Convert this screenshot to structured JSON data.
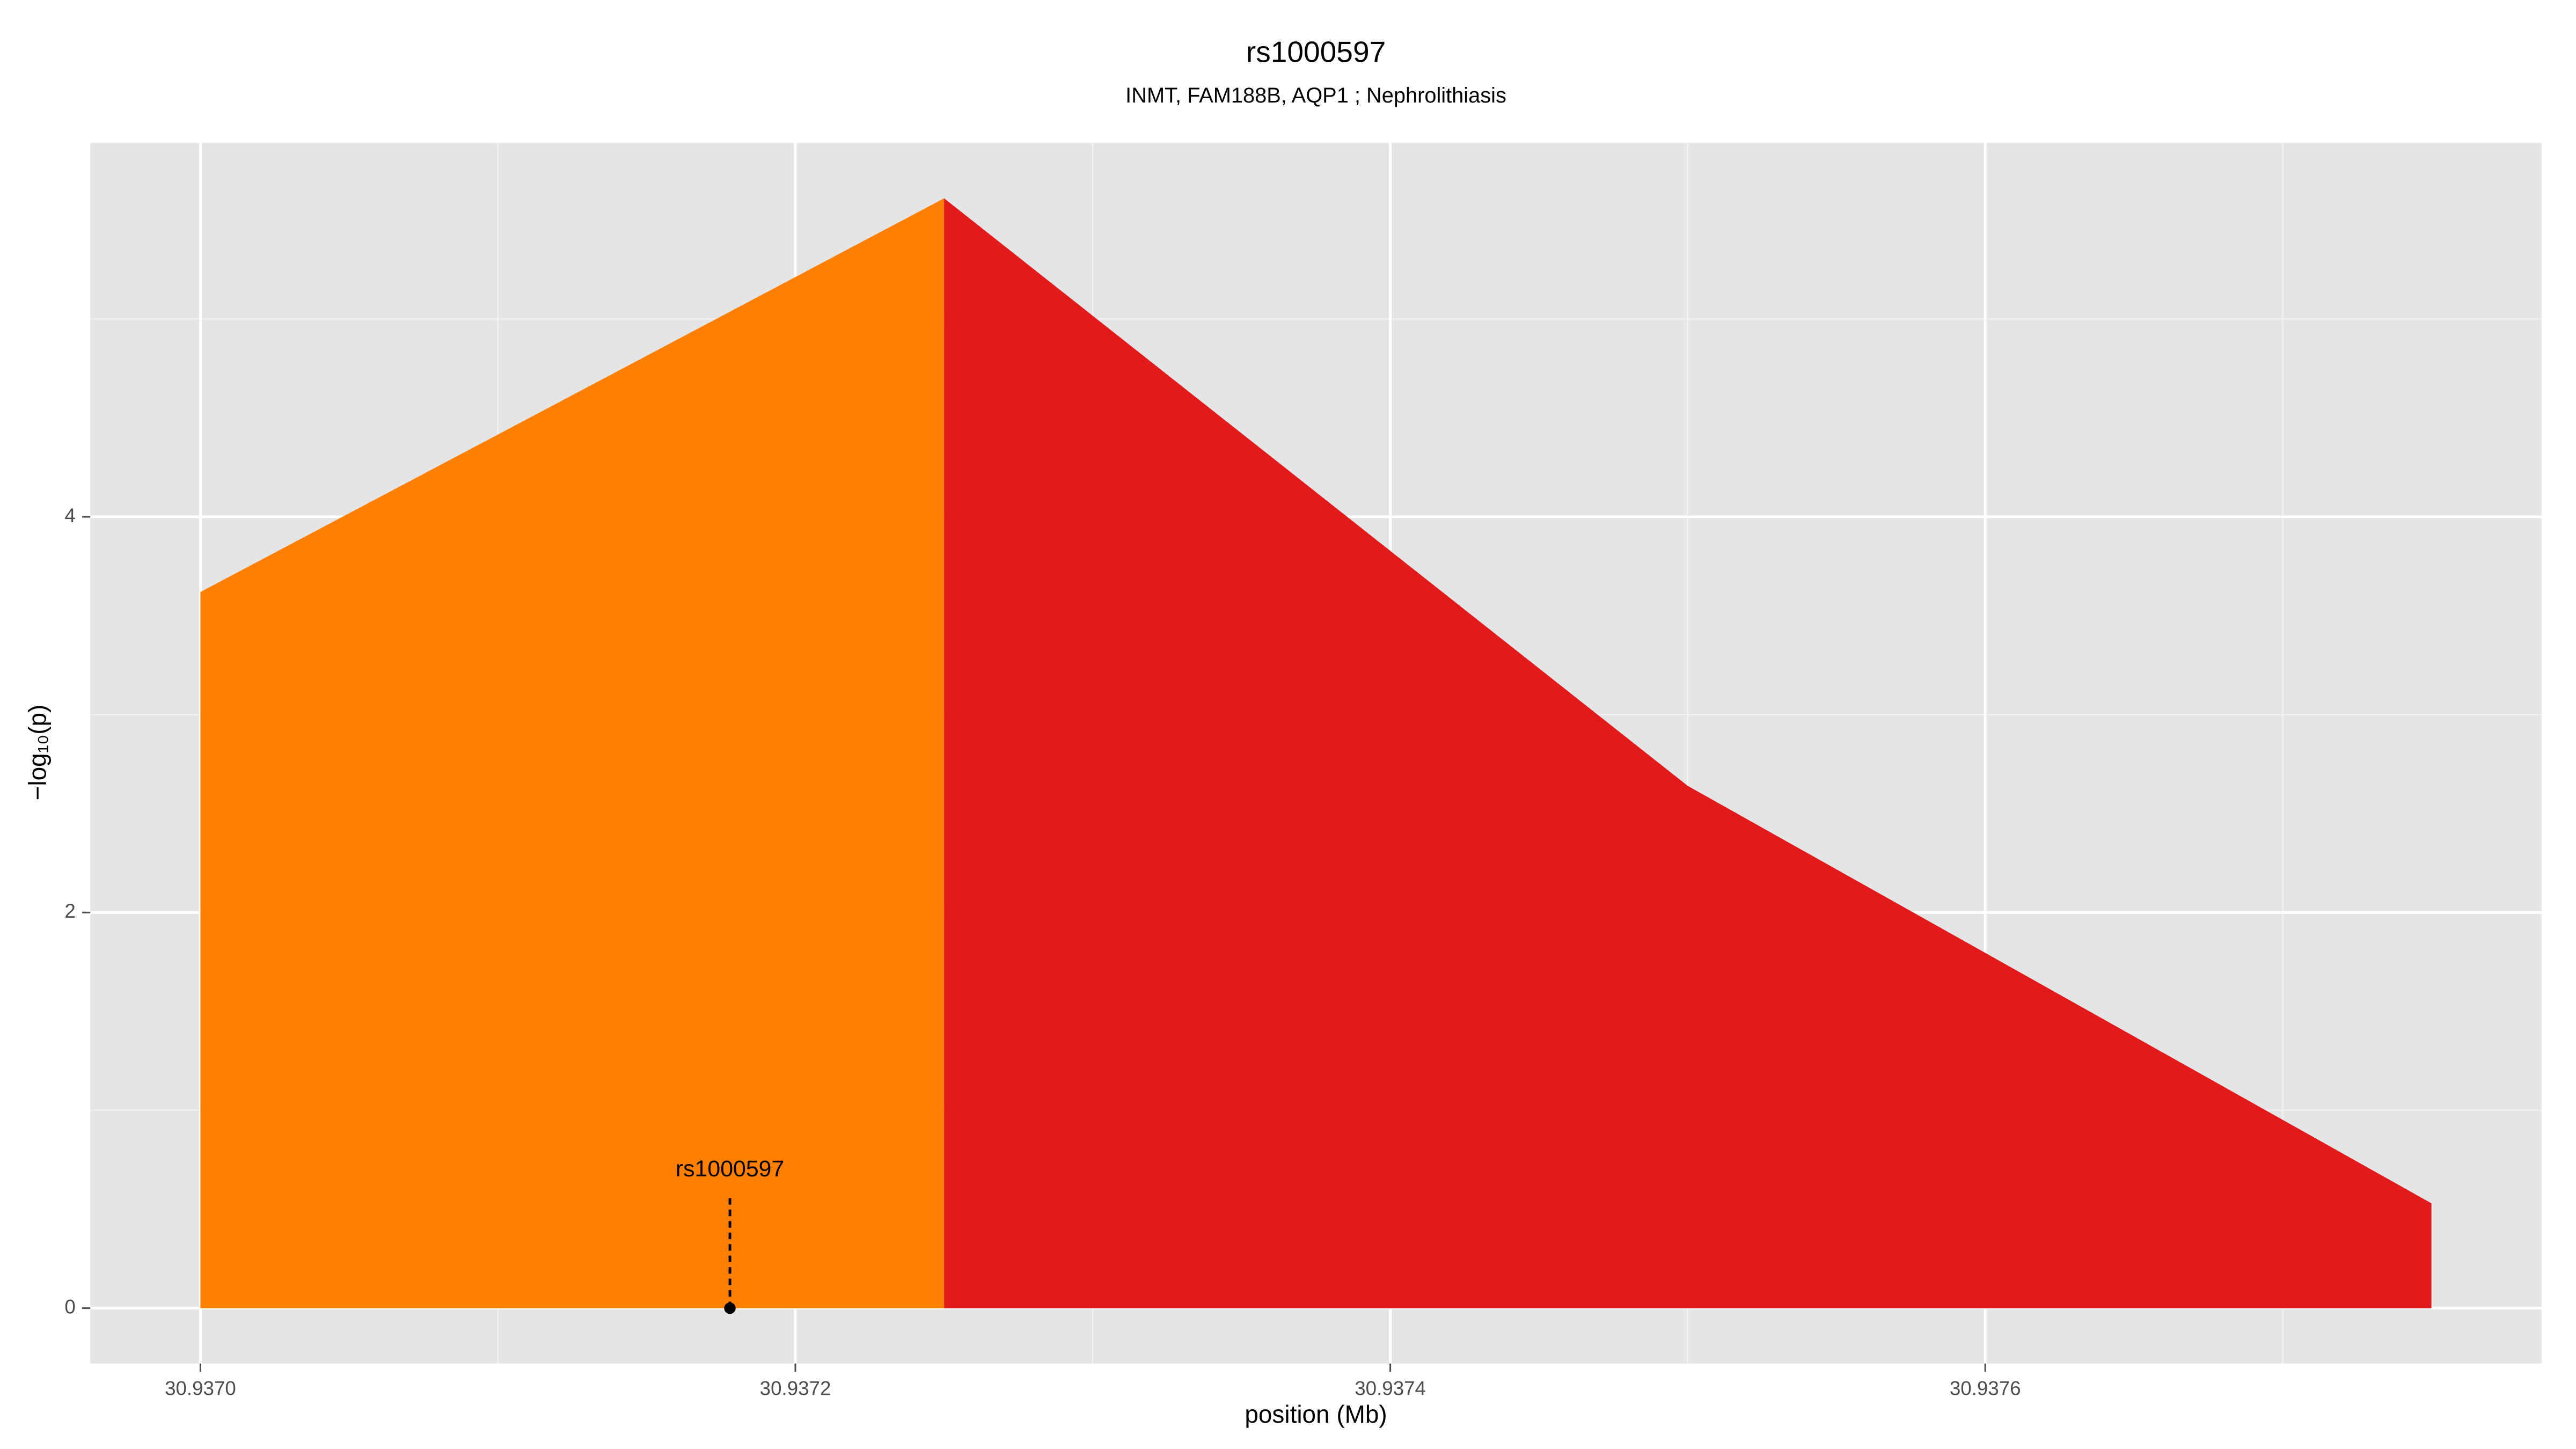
{
  "chart_data": {
    "type": "area",
    "title": "rs1000597",
    "subtitle": "INMT, FAM188B, AQP1 ; Nephrolithiasis",
    "x_label": "position (Mb)",
    "y_label": "−log₁₀(p)",
    "series": [
      {
        "color": "#ff7f00",
        "x": [
          30.937,
          30.93725
        ],
        "values": [
          3.62,
          5.61
        ]
      },
      {
        "color": "#e31a1c",
        "x": [
          30.93725,
          30.9375,
          30.93775
        ],
        "values": [
          5.61,
          2.64,
          0.53
        ]
      }
    ],
    "annotation": {
      "label": "rs1000597",
      "x": 30.937178,
      "y": 0
    },
    "xlim": [
      30.936963,
      30.937787
    ],
    "ylim": [
      -0.28,
      5.89
    ],
    "xticks": [
      {
        "value": 30.937,
        "label": "30.9370"
      },
      {
        "value": 30.9372,
        "label": "30.9372"
      },
      {
        "value": 30.9374,
        "label": "30.9374"
      },
      {
        "value": 30.9376,
        "label": "30.9376"
      }
    ],
    "yticks": [
      0,
      2,
      4
    ],
    "x_minor_grid": [
      30.9371,
      30.9373,
      30.9375,
      30.9377
    ],
    "y_minor_grid": [
      1,
      3,
      5
    ],
    "grid": true
  }
}
